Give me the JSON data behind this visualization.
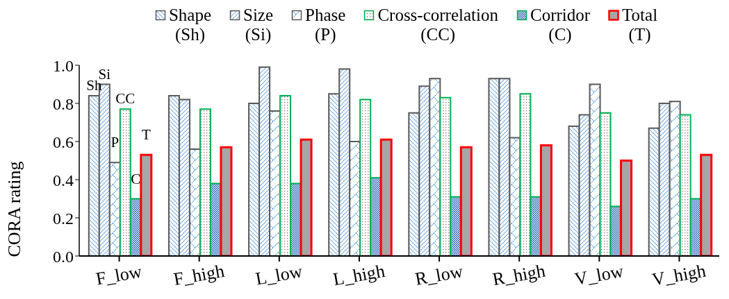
{
  "chart_data": {
    "type": "bar",
    "ylabel": "CORA rating",
    "categories": [
      "F_low",
      "F_high",
      "L_low",
      "L_high",
      "R_low",
      "R_high",
      "V_low",
      "V_high"
    ],
    "series": [
      {
        "name": "Shape (Sh)",
        "color": "#595959",
        "values": [
          0.84,
          0.84,
          0.8,
          0.85,
          0.75,
          0.93,
          0.68,
          0.67
        ]
      },
      {
        "name": "Size (Si)",
        "color": "#595959",
        "values": [
          0.9,
          0.82,
          0.99,
          0.98,
          0.89,
          0.93,
          0.74,
          0.8
        ]
      },
      {
        "name": "Phase (P)",
        "color": "#595959",
        "values": [
          0.49,
          0.56,
          0.76,
          0.6,
          0.93,
          0.62,
          0.9,
          0.81
        ]
      },
      {
        "name": "Cross-correlation (CC)",
        "color": "#00b050",
        "values": [
          0.77,
          0.77,
          0.84,
          0.82,
          0.83,
          0.85,
          0.75,
          0.74
        ]
      },
      {
        "name": "Corridor (C)",
        "color": "#00b050",
        "values": [
          0.3,
          0.38,
          0.38,
          0.41,
          0.31,
          0.31,
          0.26,
          0.3
        ]
      },
      {
        "name": "Total (T)",
        "color": "#ff0000",
        "values": [
          0.53,
          0.57,
          0.61,
          0.61,
          0.57,
          0.58,
          0.5,
          0.53
        ]
      }
    ],
    "ylim": [
      0,
      1.0
    ],
    "yticks": [
      {
        "value": 0,
        "label": "0.0"
      },
      {
        "value": 0.2,
        "label": "0.2"
      },
      {
        "value": 0.4,
        "label": "0.4"
      },
      {
        "value": 0.6,
        "label": "0.6"
      },
      {
        "value": 0.8,
        "label": "0.8"
      },
      {
        "value": 1.0,
        "label": "1.0"
      }
    ],
    "annotations": [
      "Sh",
      "Si",
      "P",
      "CC",
      "C",
      "T"
    ],
    "grid": false,
    "legend": "top"
  }
}
